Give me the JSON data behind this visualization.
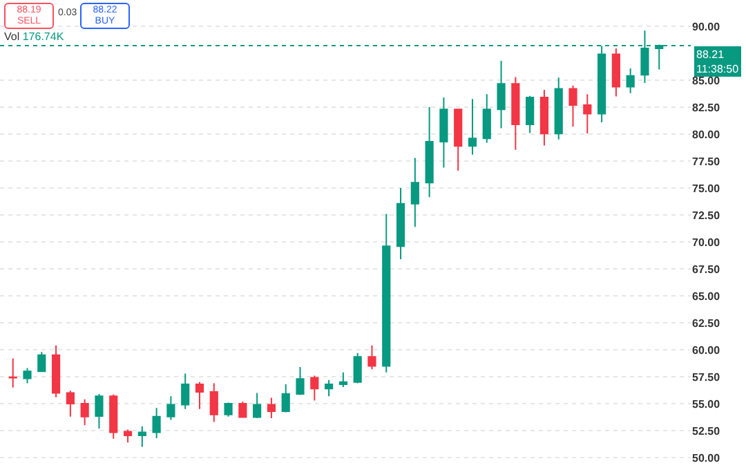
{
  "chart_data": {
    "type": "candlestick",
    "categories": [
      null,
      null,
      null,
      null,
      null,
      null,
      null,
      null,
      null,
      null,
      null,
      null,
      null,
      null,
      null,
      null,
      null,
      null,
      null,
      null,
      null,
      null,
      null,
      null,
      null,
      null,
      null,
      null,
      null,
      null,
      null,
      null,
      null,
      null,
      null,
      null,
      null,
      null,
      null,
      null,
      null,
      null,
      null,
      null,
      null,
      null
    ],
    "ohlc": [
      [
        57.45,
        59.2,
        56.5,
        57.4
      ],
      [
        57.35,
        58.3,
        56.9,
        58.0
      ],
      [
        58.0,
        59.8,
        57.95,
        59.5
      ],
      [
        59.5,
        60.4,
        55.6,
        56.0
      ],
      [
        56.0,
        56.2,
        53.8,
        55.0
      ],
      [
        55.0,
        55.4,
        53.0,
        53.8
      ],
      [
        53.85,
        55.9,
        52.7,
        55.7
      ],
      [
        55.7,
        55.85,
        51.75,
        52.35
      ],
      [
        52.4,
        52.6,
        51.4,
        52.05
      ],
      [
        52.05,
        52.9,
        51.0,
        52.35
      ],
      [
        52.35,
        54.6,
        51.8,
        53.8
      ],
      [
        53.8,
        55.7,
        53.5,
        54.9
      ],
      [
        54.9,
        57.8,
        54.5,
        56.8
      ],
      [
        56.8,
        57.0,
        54.5,
        56.1
      ],
      [
        56.1,
        56.9,
        53.3,
        54.0
      ],
      [
        54.0,
        55.1,
        53.8,
        55.0
      ],
      [
        55.0,
        55.2,
        53.7,
        53.75
      ],
      [
        53.75,
        56.0,
        53.65,
        54.9
      ],
      [
        54.9,
        55.55,
        53.65,
        54.3
      ],
      [
        54.3,
        56.8,
        54.2,
        55.9
      ],
      [
        55.9,
        58.4,
        55.8,
        57.3
      ],
      [
        57.4,
        57.6,
        55.3,
        56.4
      ],
      [
        56.4,
        57.2,
        55.7,
        56.8
      ],
      [
        56.8,
        57.9,
        56.55,
        57.0
      ],
      [
        57.0,
        59.7,
        56.9,
        59.35
      ],
      [
        59.35,
        60.4,
        58.2,
        58.5
      ],
      [
        58.5,
        72.6,
        57.9,
        69.6
      ],
      [
        69.6,
        75.0,
        68.4,
        73.55
      ],
      [
        73.55,
        77.8,
        71.4,
        75.5
      ],
      [
        75.5,
        82.5,
        74.15,
        79.3
      ],
      [
        79.3,
        83.4,
        76.9,
        82.3
      ],
      [
        82.3,
        82.3,
        76.6,
        78.9
      ],
      [
        78.9,
        83.25,
        78.1,
        79.6
      ],
      [
        79.6,
        83.7,
        79.2,
        82.3
      ],
      [
        82.3,
        86.8,
        80.55,
        84.66
      ],
      [
        84.66,
        85.3,
        78.55,
        80.9
      ],
      [
        80.9,
        83.55,
        80.1,
        83.4
      ],
      [
        83.4,
        84.1,
        78.95,
        80.05
      ],
      [
        80.05,
        85.25,
        79.5,
        84.2
      ],
      [
        84.2,
        84.5,
        80.7,
        82.7
      ],
      [
        82.7,
        83.7,
        80.05,
        81.9
      ],
      [
        81.9,
        88.2,
        81.1,
        87.4
      ],
      [
        87.4,
        87.95,
        83.5,
        84.4
      ],
      [
        84.4,
        86.1,
        83.8,
        85.4
      ],
      [
        85.5,
        89.6,
        84.75,
        87.95
      ],
      [
        87.95,
        88.3,
        86.0,
        88.21
      ]
    ],
    "colors": [
      "#f23645",
      "#089981",
      "#089981",
      "#f23645",
      "#f23645",
      "#f23645",
      "#089981",
      "#f23645",
      "#f23645",
      "#089981",
      "#089981",
      "#089981",
      "#089981",
      "#f23645",
      "#f23645",
      "#089981",
      "#f23645",
      "#089981",
      "#f23645",
      "#089981",
      "#089981",
      "#f23645",
      "#089981",
      "#089981",
      "#089981",
      "#f23645",
      "#089981",
      "#089981",
      "#089981",
      "#089981",
      "#089981",
      "#f23645",
      "#089981",
      "#089981",
      "#089981",
      "#f23645",
      "#089981",
      "#f23645",
      "#089981",
      "#f23645",
      "#f23645",
      "#089981",
      "#f23645",
      "#089981",
      "#089981",
      "#089981"
    ],
    "ylim": [
      48.85,
      92.44
    ],
    "yticks": [
      {
        "value": 50,
        "label": "50.00"
      },
      {
        "value": 52.5,
        "label": "52.50"
      },
      {
        "value": 55,
        "label": "55.00"
      },
      {
        "value": 57.5,
        "label": "57.50"
      },
      {
        "value": 60,
        "label": "60.00"
      },
      {
        "value": 62.5,
        "label": "62.50"
      },
      {
        "value": 65,
        "label": "65.00"
      },
      {
        "value": 67.5,
        "label": "67.50"
      },
      {
        "value": 70,
        "label": "70.00"
      },
      {
        "value": 72.5,
        "label": "72.50"
      },
      {
        "value": 75,
        "label": "75.00"
      },
      {
        "value": 77.5,
        "label": "77.50"
      },
      {
        "value": 80,
        "label": "80.00"
      },
      {
        "value": 82.5,
        "label": "82.50"
      },
      {
        "value": 85,
        "label": "85.00"
      },
      {
        "value": 90,
        "label": "90.00"
      }
    ],
    "tick_labels": "y",
    "grid": "y",
    "ref_lines": [
      {
        "axis": "y",
        "value": 88.21,
        "label": "88.21",
        "color": "#089981",
        "line_style": "dotted"
      }
    ],
    "annotations": [
      "88.19",
      "SELL",
      "0.03",
      "88.22",
      "BUY",
      "Vol",
      "176.74K",
      "11:38:50"
    ]
  }
}
